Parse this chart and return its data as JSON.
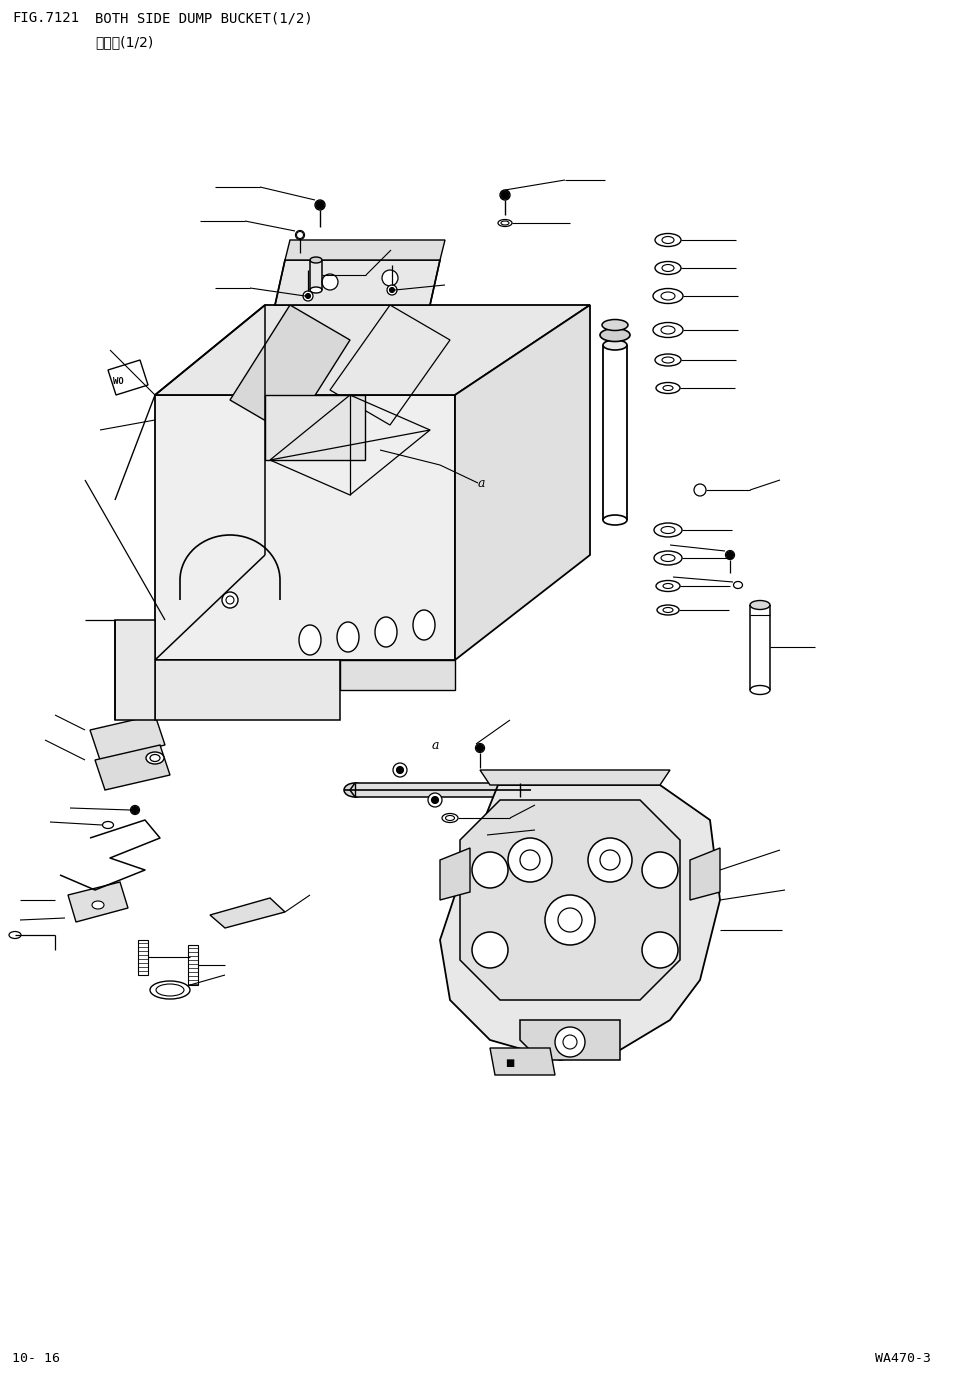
{
  "fig_number": "FIG.7121",
  "title_en": "BOTH SIDE DUMP BUCKET(1/2)",
  "title_jp": "側卤桁(1/2)",
  "page_number": "10- 16",
  "model": "WA470-3",
  "bg_color": "#ffffff",
  "line_color": "#000000",
  "title_fontsize": 10.5,
  "subtitle_fontsize": 10.5,
  "footer_fontsize": 9.5,
  "fig_width": 9.71,
  "fig_height": 13.74,
  "dpi": 100,
  "bucket_color": "#f0f0f0",
  "note_label": "a"
}
